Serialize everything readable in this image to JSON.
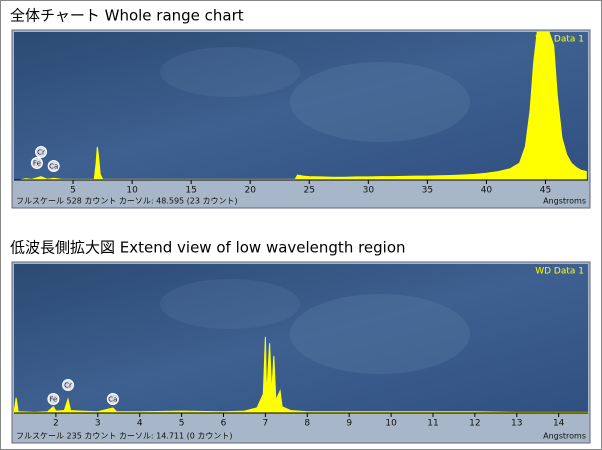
{
  "chart_data": [
    {
      "type": "area",
      "title": "全体チャート  Whole range chart",
      "x_label": "Angstroms",
      "footer": "フルスケール 528 カウント カーソル: 48.595  (23 カウント)",
      "xlim": [
        0,
        48.6
      ],
      "ylim": [
        0,
        528
      ],
      "xticks": [
        5,
        10,
        15,
        20,
        25,
        30,
        35,
        40,
        45
      ],
      "annotations": [
        {
          "label": "Cr",
          "x": 2.29
        },
        {
          "label": "Fe",
          "x": 1.94
        },
        {
          "label": "Ca",
          "x": 3.36
        }
      ],
      "x": [
        0.5,
        1.0,
        1.5,
        1.94,
        2.29,
        2.8,
        3.36,
        4,
        5,
        6,
        6.8,
        6.95,
        7.05,
        7.15,
        7.3,
        7.5,
        9,
        12,
        16,
        20,
        23.8,
        24.0,
        24.5,
        25,
        26,
        27,
        28,
        29,
        30,
        31,
        32,
        33,
        34,
        35,
        36,
        37,
        38,
        39,
        40,
        41,
        42,
        42.8,
        43.3,
        43.7,
        44.0,
        44.3,
        44.8,
        45.3,
        45.7,
        46.0,
        46.4,
        46.8,
        47.2,
        47.6,
        48.0,
        48.5
      ],
      "series": [
        {
          "name": "WD Data 1",
          "color": "#ffff00",
          "values": [
            0,
            5,
            2,
            8,
            12,
            3,
            6,
            3,
            2,
            2,
            3,
            60,
            118,
            90,
            20,
            3,
            2,
            2,
            2,
            2,
            2,
            18,
            14,
            12,
            11,
            10,
            10,
            11,
            11,
            12,
            12,
            13,
            14,
            14,
            15,
            16,
            18,
            20,
            24,
            30,
            40,
            60,
            120,
            250,
            420,
            528,
            528,
            528,
            480,
            300,
            150,
            90,
            60,
            45,
            35,
            30
          ]
        }
      ]
    },
    {
      "type": "area",
      "title": "低波長側拡大図  Extend view of low wavelength region",
      "x_label": "Angstroms",
      "footer": "フルスケール 235 カウント カーソル: 14.711  (0 カウント)",
      "xlim": [
        1,
        14.7
      ],
      "ylim": [
        0,
        235
      ],
      "xticks": [
        2,
        3,
        4,
        5,
        6,
        7,
        8,
        9,
        10,
        11,
        12,
        13,
        14
      ],
      "annotations": [
        {
          "label": "Fe",
          "x": 1.94
        },
        {
          "label": "Cr",
          "x": 2.29
        },
        {
          "label": "Ca",
          "x": 3.36
        }
      ],
      "x": [
        1.0,
        1.05,
        1.1,
        1.5,
        1.8,
        1.94,
        2.0,
        2.2,
        2.29,
        2.35,
        2.6,
        3.0,
        3.36,
        3.45,
        4.0,
        5.0,
        6.0,
        6.5,
        6.8,
        6.95,
        7.0,
        7.03,
        7.1,
        7.15,
        7.2,
        7.25,
        7.35,
        7.4,
        7.6,
        8.0,
        9.0,
        10,
        11,
        12,
        13,
        14,
        14.7
      ],
      "series": [
        {
          "name": "WD Data 1",
          "color": "#ffff00",
          "values": [
            0,
            24,
            2,
            1,
            2,
            10,
            3,
            4,
            22,
            4,
            3,
            2,
            8,
            2,
            2,
            3,
            2,
            3,
            8,
            30,
            120,
            25,
            110,
            30,
            90,
            20,
            35,
            10,
            4,
            2,
            2,
            2,
            2,
            2,
            1,
            1,
            1
          ]
        }
      ]
    }
  ]
}
